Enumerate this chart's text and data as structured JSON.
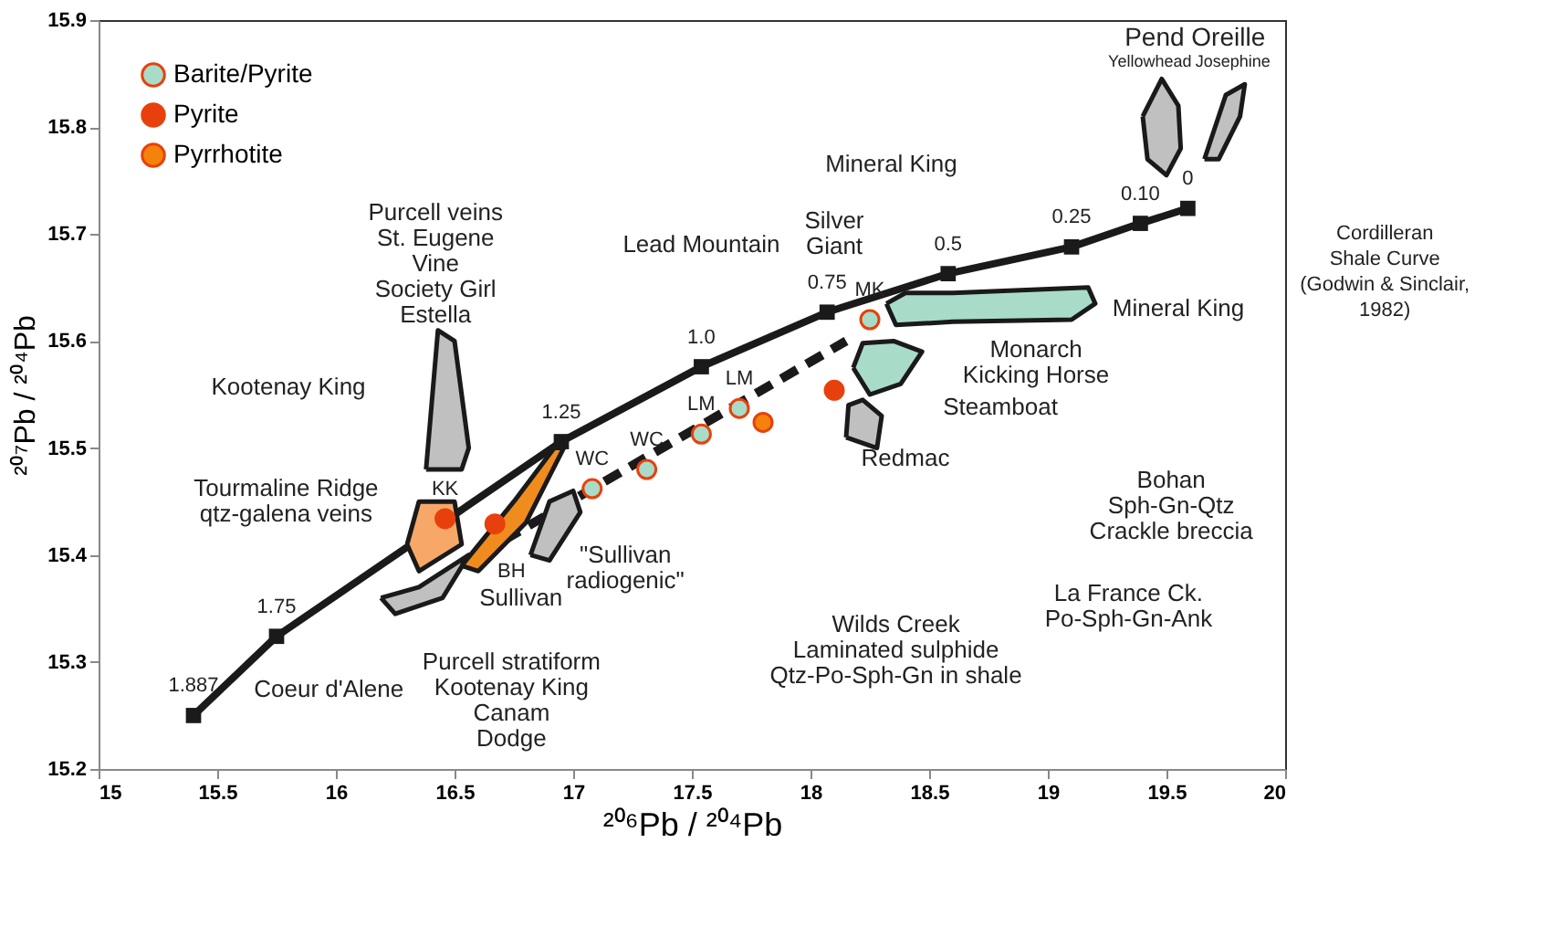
{
  "chart_data": {
    "type": "scatter",
    "xlabel": "²⁰⁶Pb / ²⁰⁴Pb",
    "ylabel": "²⁰⁷Pb / ²⁰⁴Pb",
    "xlim": [
      15,
      20
    ],
    "xticks": [
      15,
      15.5,
      16,
      16.5,
      17,
      17.5,
      18,
      18.5,
      19,
      19.5,
      20
    ],
    "ylim": [
      15.2,
      15.9
    ],
    "yticks": [
      15.2,
      15.3,
      15.4,
      15.5,
      15.6,
      15.7,
      15.8,
      15.9
    ],
    "grid": false,
    "legend": "top left",
    "series": [
      {
        "type": "line",
        "color": "#1a1a1a",
        "marker": "square",
        "x": [
          15.4,
          15.75,
          16.95,
          17.54,
          18.07,
          18.58,
          19.1,
          19.39,
          19.59
        ],
        "values": [
          15.25,
          15.324,
          15.506,
          15.576,
          15.627,
          15.663,
          15.688,
          15.71,
          15.724
        ]
      },
      {
        "type": "line",
        "color": "#1a1a1a",
        "line_style": "dashed",
        "x": [
          16.6,
          18.15
        ],
        "values": [
          15.4,
          15.6
        ]
      },
      {
        "type": "area",
        "color": "#c0c0c0",
        "x": [
          16.38,
          16.43,
          16.5,
          16.56,
          16.53,
          16.38
        ],
        "values": [
          15.48,
          15.61,
          15.6,
          15.5,
          15.48,
          15.48
        ]
      },
      {
        "type": "area",
        "color": "#c0c0c0",
        "x": [
          16.19,
          16.35,
          16.56,
          16.45,
          16.25,
          16.19
        ],
        "values": [
          15.36,
          15.37,
          15.4,
          15.36,
          15.345,
          15.36
        ]
      },
      {
        "type": "area",
        "color": "#f7a868",
        "x": [
          16.3,
          16.35,
          16.5,
          16.53,
          16.35,
          16.3
        ],
        "values": [
          15.41,
          15.45,
          15.45,
          15.41,
          15.385,
          15.41
        ]
      },
      {
        "type": "area",
        "color": "#f08c1e",
        "x": [
          16.53,
          16.75,
          16.92,
          16.96,
          16.8,
          16.6,
          16.53
        ],
        "values": [
          15.39,
          15.45,
          15.5,
          15.5,
          15.43,
          15.385,
          15.39
        ]
      },
      {
        "type": "area",
        "color": "#c0c0c0",
        "x": [
          16.82,
          16.9,
          17.0,
          17.03,
          16.9,
          16.82
        ],
        "values": [
          15.4,
          15.45,
          15.46,
          15.44,
          15.395,
          15.4
        ]
      },
      {
        "type": "area",
        "color": "#c0c0c0",
        "x": [
          18.15,
          18.16,
          18.22,
          18.3,
          18.28,
          18.15
        ],
        "values": [
          15.51,
          15.54,
          15.545,
          15.53,
          15.5,
          15.51
        ]
      },
      {
        "type": "area",
        "color": "#a8dcc8",
        "x": [
          18.18,
          18.22,
          18.35,
          18.47,
          18.38,
          18.25,
          18.18
        ],
        "values": [
          15.575,
          15.598,
          15.6,
          15.59,
          15.56,
          15.55,
          15.575
        ]
      },
      {
        "type": "area",
        "color": "#a8dcc8",
        "x": [
          18.32,
          18.4,
          18.6,
          19.17,
          19.2,
          19.1,
          18.6,
          18.36,
          18.32
        ],
        "values": [
          15.635,
          15.645,
          15.645,
          15.65,
          15.635,
          15.62,
          15.618,
          15.615,
          15.635
        ]
      },
      {
        "type": "area",
        "color": "#c0c0c0",
        "x": [
          19.4,
          19.48,
          19.55,
          19.56,
          19.5,
          19.42,
          19.4
        ],
        "values": [
          15.81,
          15.845,
          15.82,
          15.78,
          15.755,
          15.77,
          15.81
        ]
      },
      {
        "type": "area",
        "color": "#c0c0c0",
        "x": [
          19.66,
          19.75,
          19.83,
          19.81,
          19.72,
          19.66
        ],
        "values": [
          15.77,
          15.83,
          15.84,
          15.81,
          15.77,
          15.77
        ]
      },
      {
        "name": "Barite/Pyrite",
        "color": "#a8dcc8",
        "x": [
          17.08,
          17.31,
          17.54,
          17.7,
          18.25
        ],
        "values": [
          15.462,
          15.48,
          15.513,
          15.537,
          15.62
        ]
      },
      {
        "name": "Pyrite",
        "color": "#e8400c",
        "x": [
          16.46,
          16.67,
          18.1
        ],
        "values": [
          15.434,
          15.429,
          15.554
        ]
      },
      {
        "name": "Pyrrhotite",
        "color": "#f5820a",
        "x": [
          17.8
        ],
        "values": [
          15.524
        ]
      }
    ],
    "annotations": [
      "Pend Oreille",
      "Yellowhead",
      "Josephine",
      "Cordilleran\nShale Curve\n(Godwin & Sinclair,\n1982)",
      "Mineral King",
      "Silver\nGiant",
      "Lead Mountain",
      "Mineral King",
      "Monarch\nKicking Horse",
      "Steamboat",
      "Redmac",
      "Bohan\nSph-Gn-Qtz\nCrackle breccia",
      "La France Ck.\nPo-Sph-Gn-Ank",
      "Wilds Creek\nLaminated sulphide\nQtz-Po-Sph-Gn in shale",
      "Purcell stratiform\nKootenay King\nCanam\nDodge",
      "Coeur d'Alene",
      "Sullivan",
      "\"Sullivan\nradiogenic\"",
      "Tourmaline Ridge\nqtz-galena veins",
      "Kootenay King",
      "Purcell veins\nSt. Eugene\nVine\nSociety Girl\nEstella",
      {
        "text": "1.887",
        "x": 15.4,
        "y": 15.25
      },
      {
        "text": "1.75",
        "x": 15.75,
        "y": 15.324
      },
      {
        "text": "1.25",
        "x": 16.95,
        "y": 15.506
      },
      {
        "text": "1.0",
        "x": 17.54,
        "y": 15.576
      },
      {
        "text": "0.75",
        "x": 18.07,
        "y": 15.627
      },
      {
        "text": "0.5",
        "x": 18.58,
        "y": 15.663
      },
      {
        "text": "0.25",
        "x": 19.1,
        "y": 15.688
      },
      {
        "text": "0.10",
        "x": 19.39,
        "y": 15.71
      },
      {
        "text": "0",
        "x": 19.59,
        "y": 15.724
      },
      {
        "text": "KK",
        "x": 16.46,
        "y": 15.434
      },
      {
        "text": "BH",
        "x": 16.67,
        "y": 15.429
      },
      {
        "text": "WC",
        "x": 17.08,
        "y": 15.462
      },
      {
        "text": "WC",
        "x": 17.31,
        "y": 15.48
      },
      {
        "text": "LM",
        "x": 17.54,
        "y": 15.513
      },
      {
        "text": "LM",
        "x": 17.7,
        "y": 15.537
      },
      {
        "text": "MK",
        "x": 18.25,
        "y": 15.62
      }
    ]
  }
}
